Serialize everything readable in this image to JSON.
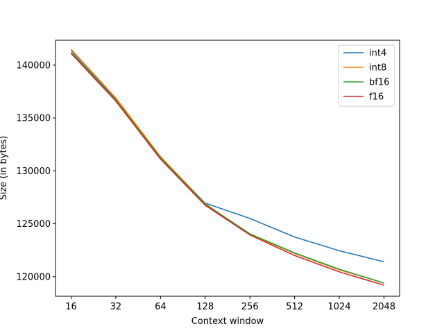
{
  "chart_data": {
    "type": "line",
    "xlabel": "Context window",
    "ylabel": "Size (in bytes)",
    "x": [
      16,
      32,
      64,
      128,
      256,
      512,
      1024,
      2048
    ],
    "x_scale": "log2",
    "x_tick_labels": [
      "16",
      "32",
      "64",
      "128",
      "256",
      "512",
      "1024",
      "2048"
    ],
    "y_ticks": [
      120000,
      125000,
      130000,
      135000,
      140000
    ],
    "y_tick_labels": [
      "120000",
      "125000",
      "130000",
      "135000",
      "140000"
    ],
    "ylim": [
      118150,
      142350
    ],
    "grid": false,
    "legend_position": "upper-right",
    "series": [
      {
        "name": "int4",
        "color": "#1f77b4",
        "values": [
          141400,
          136800,
          131300,
          126950,
          125500,
          123750,
          122450,
          121400
        ]
      },
      {
        "name": "int8",
        "color": "#ff7f0e",
        "values": [
          141500,
          136900,
          131350,
          126900,
          124000,
          122200,
          120650,
          119400
        ]
      },
      {
        "name": "bf16",
        "color": "#2ca02c",
        "values": [
          141200,
          136700,
          131250,
          126850,
          124050,
          122250,
          120700,
          119400
        ]
      },
      {
        "name": "f16",
        "color": "#d62728",
        "values": [
          141100,
          136600,
          131100,
          126750,
          123950,
          122000,
          120450,
          119200
        ]
      }
    ]
  }
}
